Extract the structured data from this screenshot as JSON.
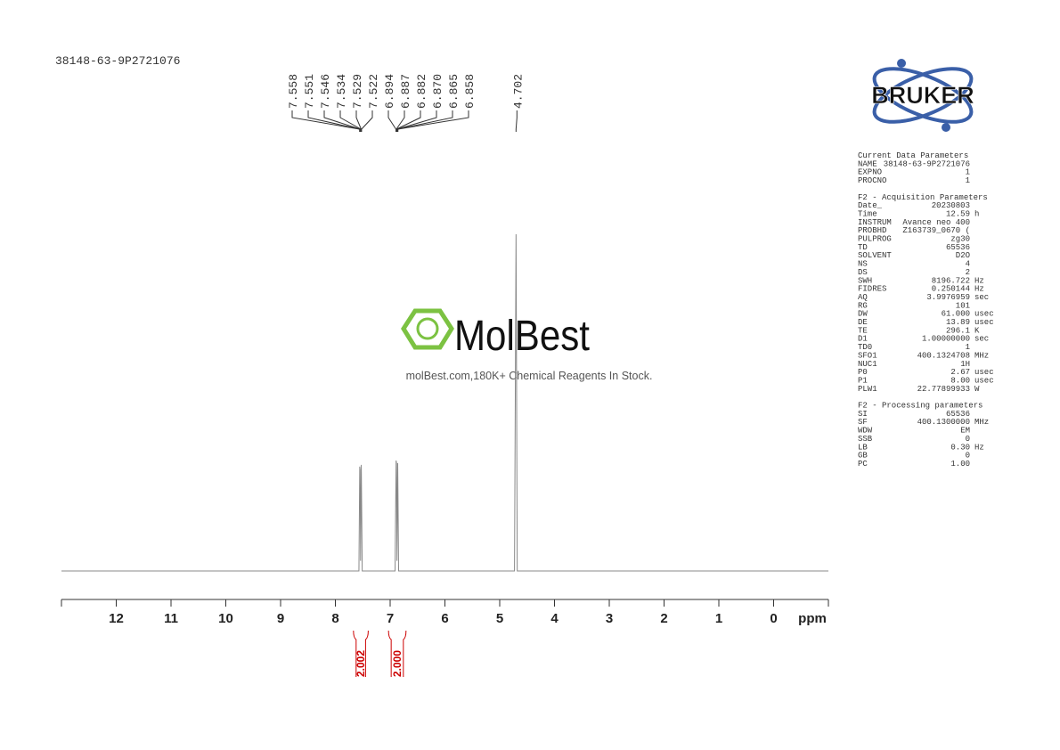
{
  "header": {
    "sample_id": "38148-63-9P2721076"
  },
  "watermark": {
    "brand": "MolBest",
    "tagline": "molBest.com,180K+ Chemical Reagents In Stock."
  },
  "logo": {
    "text": "BRUKER"
  },
  "parameters": [
    {
      "title": "Current Data Parameters",
      "rows": [
        [
          "NAME",
          "38148-63-9P2721076"
        ],
        [
          "EXPNO",
          "1"
        ],
        [
          "PROCNO",
          "1"
        ]
      ]
    },
    {
      "title": "F2 - Acquisition Parameters",
      "rows": [
        [
          "Date_",
          "20230803"
        ],
        [
          "Time",
          "12.59",
          "h"
        ],
        [
          "INSTRUM",
          "Avance neo 400"
        ],
        [
          "PROBHD",
          "Z163739_0670 ("
        ],
        [
          "PULPROG",
          "zg30"
        ],
        [
          "TD",
          "65536"
        ],
        [
          "SOLVENT",
          "D2O"
        ],
        [
          "NS",
          "4"
        ],
        [
          "DS",
          "2"
        ],
        [
          "SWH",
          "8196.722",
          "Hz"
        ],
        [
          "FIDRES",
          "0.250144",
          "Hz"
        ],
        [
          "AQ",
          "3.9976959",
          "sec"
        ],
        [
          "RG",
          "101"
        ],
        [
          "DW",
          "61.000",
          "usec"
        ],
        [
          "DE",
          "13.89",
          "usec"
        ],
        [
          "TE",
          "296.1",
          "K"
        ],
        [
          "D1",
          "1.00000000",
          "sec"
        ],
        [
          "TD0",
          "1"
        ],
        [
          "SFO1",
          "400.1324708",
          "MHz"
        ],
        [
          "NUC1",
          "1H"
        ],
        [
          "P0",
          "2.67",
          "usec"
        ],
        [
          "P1",
          "8.00",
          "usec"
        ],
        [
          "PLW1",
          "22.77899933",
          "W"
        ]
      ]
    },
    {
      "title": "F2 - Processing parameters",
      "rows": [
        [
          "SI",
          "65536"
        ],
        [
          "SF",
          "400.1300000",
          "MHz"
        ],
        [
          "WDW",
          "EM"
        ],
        [
          "SSB",
          "0"
        ],
        [
          "LB",
          "0.30",
          "Hz"
        ],
        [
          "GB",
          "0"
        ],
        [
          "PC",
          "1.00"
        ]
      ]
    }
  ],
  "chart_data": {
    "type": "line",
    "x": [
      13,
      7.57,
      7.555,
      7.548,
      7.54,
      7.527,
      7.51,
      6.91,
      6.891,
      6.884,
      6.876,
      6.862,
      6.845,
      4.73,
      4.702,
      4.68,
      -1
    ],
    "values": [
      0,
      0,
      31,
      30,
      3,
      31.5,
      0,
      0,
      32.8,
      32,
      3,
      32,
      0,
      0,
      100,
      0,
      0
    ],
    "color": "#888888",
    "xlim": [
      13,
      -1
    ],
    "ylim": [
      0,
      100
    ],
    "xticks": [
      12,
      11,
      10,
      9,
      8,
      7,
      6,
      5,
      4,
      3,
      2,
      1,
      0
    ],
    "xlabel": "ppm",
    "peak_labels": [
      7.558,
      7.551,
      7.546,
      7.534,
      7.529,
      7.522,
      6.894,
      6.887,
      6.882,
      {
        "value": 6.87,
        "label": "6.870"
      },
      6.865,
      6.858,
      4.702
    ],
    "integrals": [
      {
        "range": [
          7.67,
          7.4
        ],
        "value": 2.002
      },
      {
        "range": [
          7.03,
          6.71
        ],
        "value": 2,
        "label": "2.000"
      }
    ],
    "integral_color": "#cc0000"
  }
}
